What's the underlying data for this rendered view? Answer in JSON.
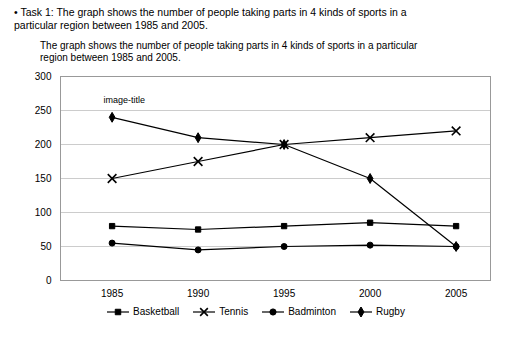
{
  "chart_data": {
    "type": "line",
    "title": [
      "•  Task 1: The graph shows the number of people taking parts in 4 kinds of sports in a",
      "particular region between 1985 and 2005."
    ],
    "subtitle": [
      "The graph shows the number of people taking parts in 4 kinds of sports in a particular",
      "region between 1985 and 2005."
    ],
    "x": [
      1985,
      1990,
      1995,
      2000,
      2005
    ],
    "series": [
      {
        "name": "Basketball",
        "color": "#000000",
        "marker": "square",
        "values": [
          80,
          75,
          80,
          85,
          80
        ]
      },
      {
        "name": "Tennis",
        "color": "#000000",
        "marker": "x",
        "values": [
          150,
          175,
          200,
          210,
          220
        ]
      },
      {
        "name": "Badminton",
        "color": "#000000",
        "marker": "circle",
        "values": [
          55,
          45,
          50,
          52,
          50
        ]
      },
      {
        "name": "Rugby",
        "color": "#000000",
        "marker": "diamond",
        "values": [
          240,
          210,
          200,
          150,
          50
        ]
      }
    ],
    "xlim": [
      1982,
      2007
    ],
    "xticks": [
      1985,
      1990,
      1995,
      2000,
      2005
    ],
    "ylim": [
      0,
      300
    ],
    "yticks": [
      0,
      50,
      100,
      150,
      200,
      250,
      300
    ],
    "grid": true,
    "legend": "bottom",
    "annotations": [
      {
        "text": "image-title",
        "x": 1984.5,
        "y": 265
      }
    ]
  }
}
